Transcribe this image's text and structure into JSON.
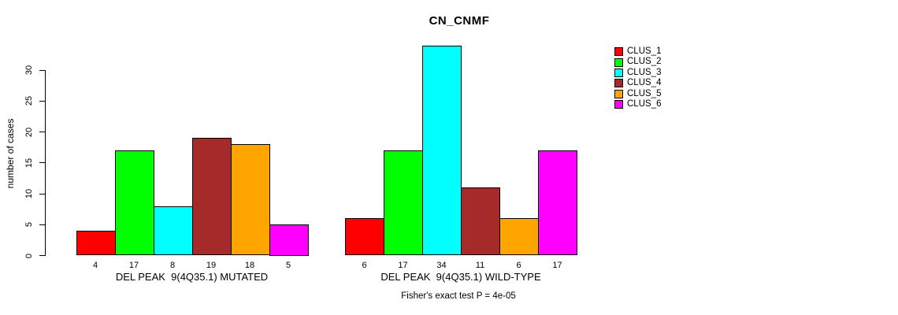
{
  "title": "CN_CNMF",
  "footer": "Fisher's exact test P = 4e-05",
  "chart_data": {
    "type": "bar",
    "title": "CN_CNMF",
    "xlabel": "",
    "ylabel": "number of cases",
    "ylim": [
      0,
      34
    ],
    "yticks": [
      0,
      5,
      10,
      15,
      20,
      25,
      30
    ],
    "grid": false,
    "legend_position": "right",
    "bar_border_color": "#000000",
    "legend": [
      {
        "name": "CLUS_1",
        "color": "#FF0000"
      },
      {
        "name": "CLUS_2",
        "color": "#00FF00"
      },
      {
        "name": "CLUS_3",
        "color": "#00FFFF"
      },
      {
        "name": "CLUS_4",
        "color": "#A52A2A"
      },
      {
        "name": "CLUS_5",
        "color": "#FFA500"
      },
      {
        "name": "CLUS_6",
        "color": "#FF00FF"
      }
    ],
    "groups": [
      {
        "label": "DEL PEAK  9(4Q35.1) MUTATED",
        "values": [
          4,
          17,
          8,
          19,
          18,
          5
        ]
      },
      {
        "label": "DEL PEAK  9(4Q35.1) WILD-TYPE",
        "values": [
          6,
          17,
          34,
          11,
          6,
          17
        ]
      }
    ],
    "annotation": "Fisher's exact test P = 4e-05"
  }
}
